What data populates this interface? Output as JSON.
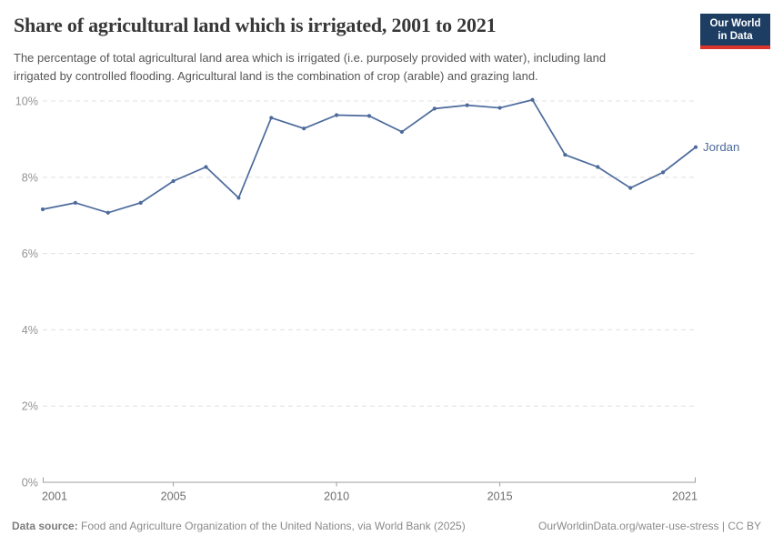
{
  "header": {
    "title": "Share of agricultural land which is irrigated, 2001 to 2021",
    "subtitle": "The percentage of total agricultural land area which is irrigated (i.e. purposely provided with water), including land irrigated by controlled flooding. Agricultural land is the combination of crop (arable) and grazing land."
  },
  "logo": {
    "line1": "Our World",
    "line2": "in Data",
    "bg_color": "#1d3d63",
    "accent_color": "#dc352b"
  },
  "chart_data": {
    "type": "line",
    "title": "Share of agricultural land which is irrigated, 2001 to 2021",
    "x": [
      2001,
      2002,
      2003,
      2004,
      2005,
      2006,
      2007,
      2008,
      2009,
      2010,
      2011,
      2012,
      2013,
      2014,
      2015,
      2016,
      2017,
      2018,
      2019,
      2020,
      2021
    ],
    "series": [
      {
        "name": "Jordan",
        "color": "#4C6A9C",
        "values": [
          7.16,
          7.33,
          7.07,
          7.33,
          7.9,
          8.27,
          7.46,
          9.56,
          9.28,
          9.63,
          9.61,
          9.19,
          9.8,
          9.89,
          9.82,
          10.03,
          8.59,
          8.27,
          7.72,
          8.13,
          8.79
        ]
      }
    ],
    "xlabel": "",
    "ylabel": "",
    "ylim": [
      0,
      10
    ],
    "yticks": [
      0,
      2,
      4,
      6,
      8,
      10
    ],
    "ytick_suffix": "%",
    "xticks": [
      2001,
      2005,
      2010,
      2015,
      2021
    ],
    "grid": "horizontal-dashed",
    "legend_position": "end-of-line",
    "colors": {
      "grid": "#e0e0e0",
      "axis": "#9e9e9e",
      "ytick_label": "#949494",
      "xtick_label": "#6e6e6e"
    }
  },
  "footer": {
    "source_label": "Data source:",
    "source_text": " Food and Agriculture Organization of the United Nations, via World Bank (2025)",
    "link_text": "OurWorldinData.org/water-use-stress | CC BY"
  }
}
